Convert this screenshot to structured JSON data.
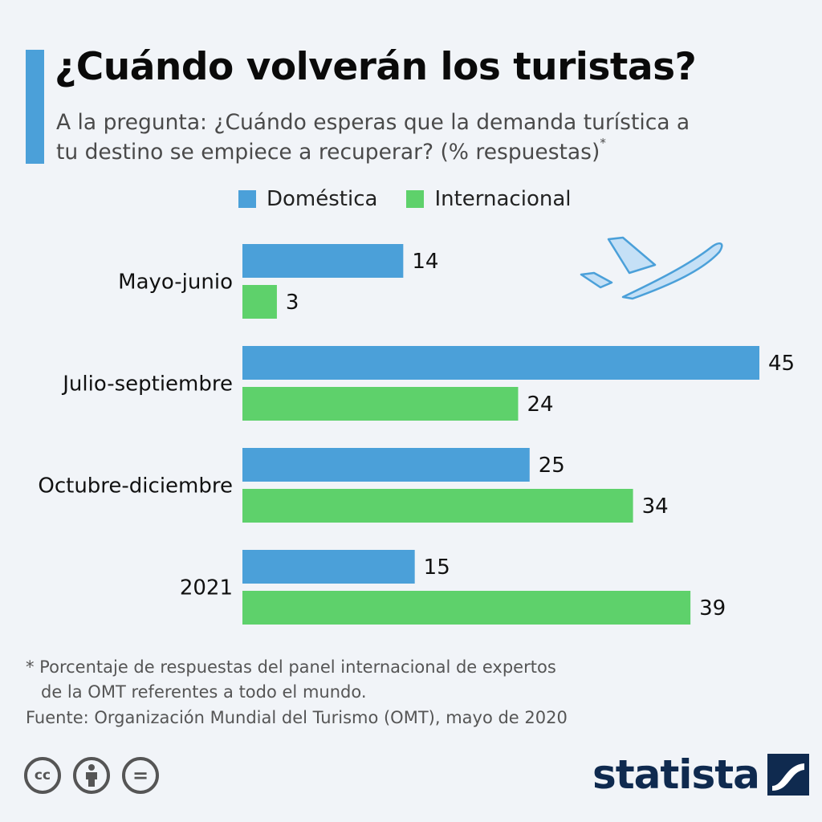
{
  "header": {
    "title": "¿Cuándo volverán los turistas?",
    "subtitle_line1": "A la pregunta: ¿Cuándo esperas que la demanda turística a",
    "subtitle_line2": "tu destino se empiece a recuperar? (% respuestas)",
    "subtitle_mark": "*"
  },
  "chart_data": {
    "type": "bar",
    "orientation": "horizontal",
    "categories": [
      "Mayo-junio",
      "Julio-septiembre",
      "Octubre-diciembre",
      "2021"
    ],
    "series": [
      {
        "name": "Doméstica",
        "values": [
          14,
          45,
          25,
          15
        ],
        "color": "#4ba0d9"
      },
      {
        "name": "Internacional",
        "values": [
          3,
          24,
          34,
          39
        ],
        "color": "#5ed16b"
      }
    ],
    "xlim": [
      0,
      45
    ],
    "grid": false,
    "legend_position": "top"
  },
  "footer": {
    "footnote_line1": "* Porcentaje de respuestas del panel internacional de expertos",
    "footnote_line2": "de la OMT referentes a todo el mundo.",
    "source": "Fuente: Organización Mundial del Turismo (OMT), mayo de 2020",
    "license_icons": [
      {
        "name": "cc-icon",
        "glyph": "cc"
      },
      {
        "name": "attribution-icon",
        "glyph": ""
      },
      {
        "name": "no-derivatives-icon",
        "glyph": "="
      }
    ],
    "brand": "statista"
  },
  "colors": {
    "accent": "#4ba0d9",
    "domestic": "#4ba0d9",
    "international": "#5ed16b",
    "brand": "#0f2a4f",
    "background": "#f1f4f8"
  }
}
